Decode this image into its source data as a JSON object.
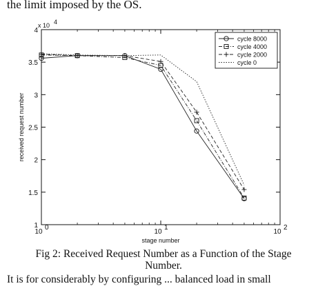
{
  "page": {
    "top_text": "the limit imposed by the OS.",
    "caption_line1": "Fig 2: Received Request Number as a Function of the Stage",
    "caption_line2": "Number.",
    "bottom_text": "It is for considerably by configuring ... balanced load in small"
  },
  "chart_data": {
    "type": "line",
    "title": "",
    "xlabel": "stage number",
    "ylabel": "received request number",
    "xscale": "log",
    "xlim": [
      1,
      100
    ],
    "ylim": [
      10000,
      40000
    ],
    "x_ticks": [
      1,
      10,
      100
    ],
    "x_tick_labels": [
      "10",
      "10",
      "10"
    ],
    "x_tick_exponents": [
      "0",
      "1",
      "2"
    ],
    "y_ticks": [
      10000,
      15000,
      20000,
      25000,
      30000,
      35000,
      40000
    ],
    "y_tick_labels": [
      "1",
      "1.5",
      "2",
      "2.5",
      "3",
      "3.5",
      "4"
    ],
    "y_multiplier": "x 10",
    "y_multiplier_exponent": "4",
    "grid": false,
    "legend_position": "top-right",
    "x": [
      1,
      2,
      5,
      10,
      20,
      50
    ],
    "series": [
      {
        "name": "cycle 8000",
        "marker": "circle",
        "dash": "solid",
        "values": [
          35600,
          36000,
          36000,
          33900,
          24400,
          14000
        ]
      },
      {
        "name": "cycle 4000",
        "marker": "square",
        "dash": "dashdot",
        "values": [
          36100,
          36000,
          35700,
          34500,
          26000,
          14100
        ]
      },
      {
        "name": "cycle 2000",
        "marker": "plus",
        "dash": "dashed",
        "values": [
          36200,
          36000,
          36000,
          35100,
          27300,
          15400
        ]
      },
      {
        "name": "cycle 0",
        "marker": "none",
        "dash": "dotted",
        "values": [
          36300,
          36100,
          36000,
          36100,
          32000,
          16100
        ]
      }
    ]
  }
}
